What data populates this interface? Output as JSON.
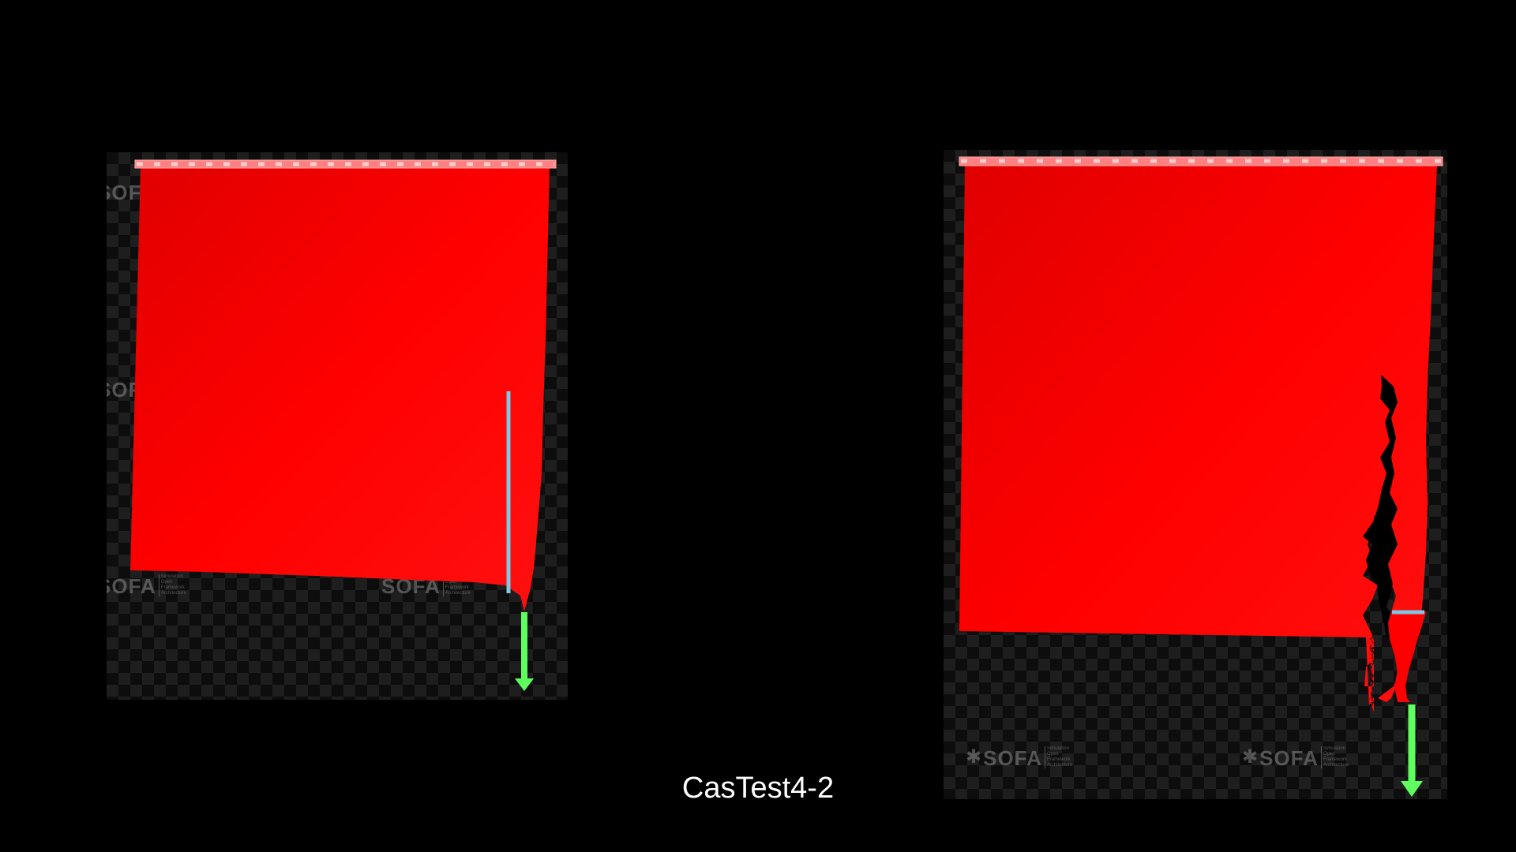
{
  "caption": "CasTest4-2",
  "colors": {
    "background": "#000000",
    "cloth": "#ff0000",
    "fixed_bar": "#ff8080",
    "cut_line": "#7ec8e3",
    "force_arrow": "#5eff5e",
    "watermark": "#8a8a8a"
  },
  "watermark": {
    "word": "SOFA",
    "small_lines": [
      "Simulation",
      "Open",
      "Framework",
      "Architecture"
    ]
  },
  "icons": {
    "watermark_logo": "sofa-logo-icon",
    "force_indicator": "arrow-down-icon"
  }
}
